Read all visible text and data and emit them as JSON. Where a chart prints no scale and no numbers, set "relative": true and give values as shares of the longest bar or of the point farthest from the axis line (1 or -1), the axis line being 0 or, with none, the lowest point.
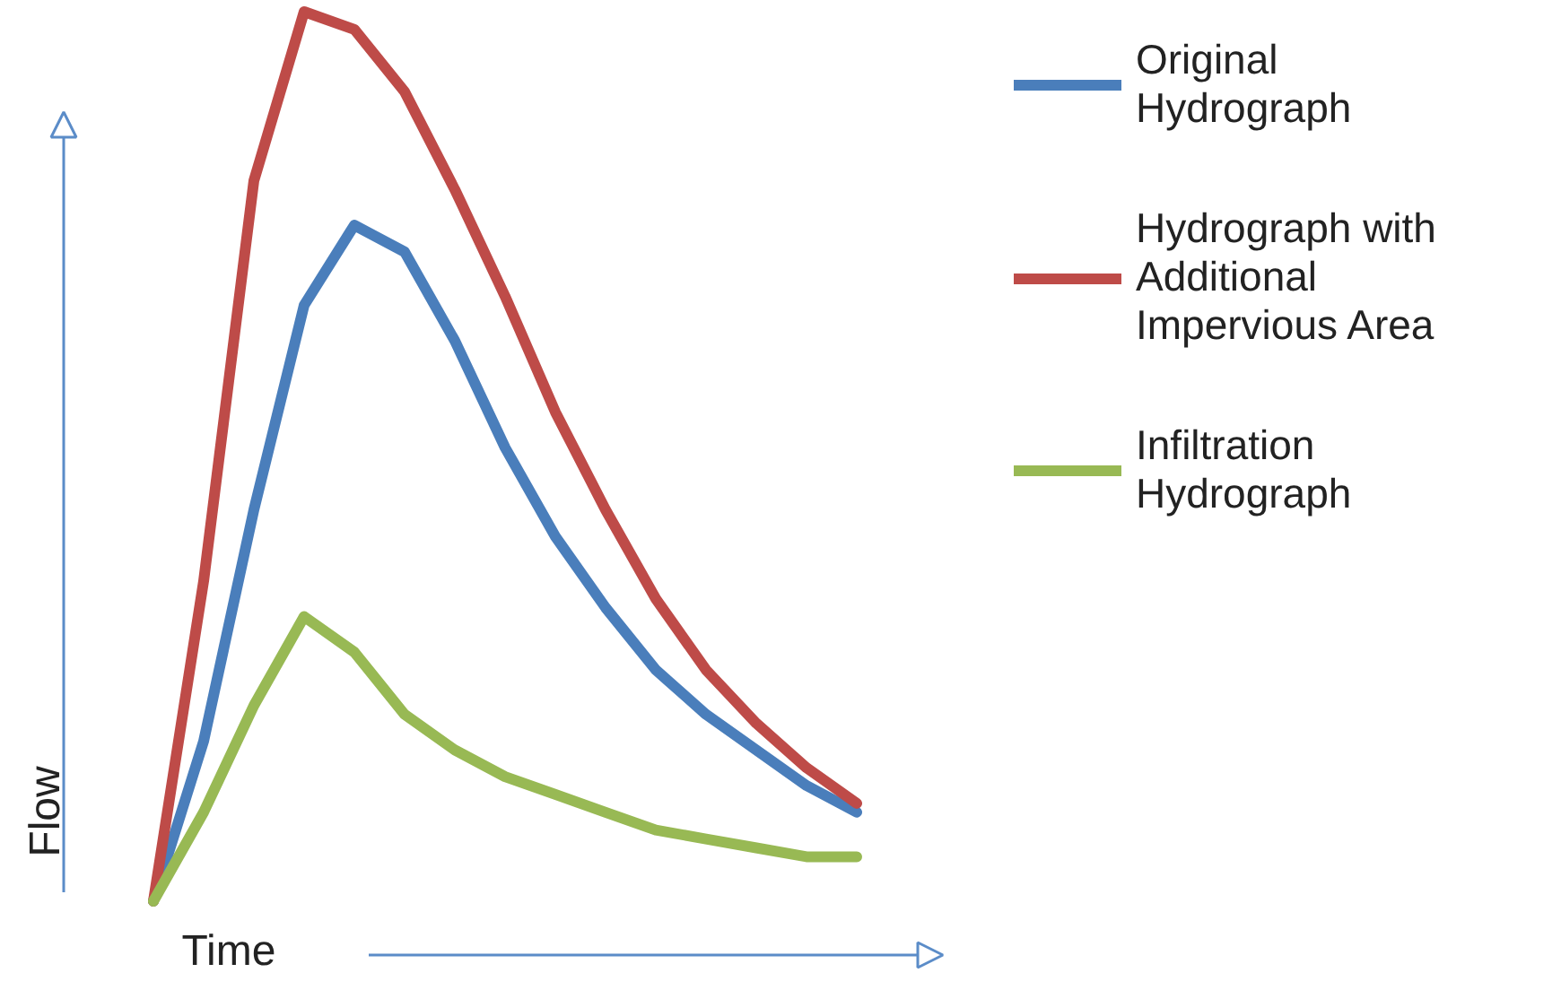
{
  "chart_data": {
    "type": "line",
    "relative": true,
    "xlabel": "Time",
    "ylabel": "Flow",
    "legend": "right",
    "categories": [
      null,
      null,
      null,
      null,
      null,
      null,
      null,
      null,
      null,
      null,
      null,
      null,
      null,
      null,
      null
    ],
    "series": [
      {
        "name": "Original Hydrograph",
        "color": "#4a7ebb",
        "values": [
          0,
          0.18,
          0.44,
          0.67,
          0.76,
          0.73,
          0.63,
          0.51,
          0.41,
          0.33,
          0.26,
          0.21,
          0.17,
          0.13,
          0.1
        ]
      },
      {
        "name": "Hydrograph with Additional Impervious Area",
        "color": "#be4b48",
        "values": [
          0,
          0.36,
          0.81,
          1.0,
          0.98,
          0.91,
          0.8,
          0.68,
          0.55,
          0.44,
          0.34,
          0.26,
          0.2,
          0.15,
          0.11
        ]
      },
      {
        "name": "Infiltration Hydrograph",
        "color": "#98b954",
        "values": [
          0,
          0.1,
          0.22,
          0.32,
          0.28,
          0.21,
          0.17,
          0.14,
          0.12,
          0.1,
          0.08,
          0.07,
          0.06,
          0.05,
          0.05
        ]
      }
    ]
  }
}
